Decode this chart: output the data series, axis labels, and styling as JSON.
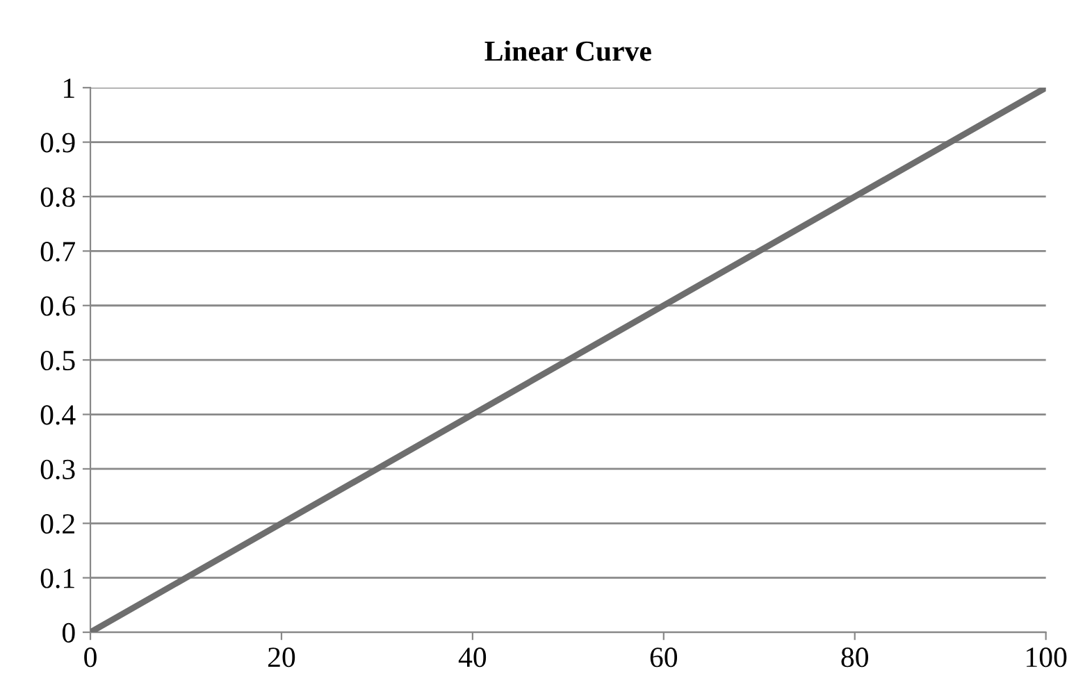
{
  "chart_data": {
    "type": "line",
    "title": "Linear Curve",
    "x": [
      0,
      100
    ],
    "series": [
      {
        "color": "#6e6e6e",
        "values": [
          0,
          1
        ]
      }
    ],
    "xlim": [
      0,
      100
    ],
    "xticks": [
      0,
      20,
      40,
      60,
      80,
      100
    ],
    "ylim": [
      0,
      1
    ],
    "yticks": [
      0,
      {
        "value": 0.1,
        "label": "0.1"
      },
      {
        "value": 0.2,
        "label": "0.2"
      },
      {
        "value": 0.3,
        "label": "0.3"
      },
      {
        "value": 0.4,
        "label": "0.4"
      },
      {
        "value": 0.5,
        "label": "0.5"
      },
      {
        "value": 0.6,
        "label": "0.6"
      },
      {
        "value": 0.7,
        "label": "0.7"
      },
      {
        "value": 0.8,
        "label": "0.8"
      },
      {
        "value": 0.9,
        "label": "0.9"
      },
      1
    ],
    "grid": "y",
    "marker": "none",
    "line_style": "solid"
  }
}
